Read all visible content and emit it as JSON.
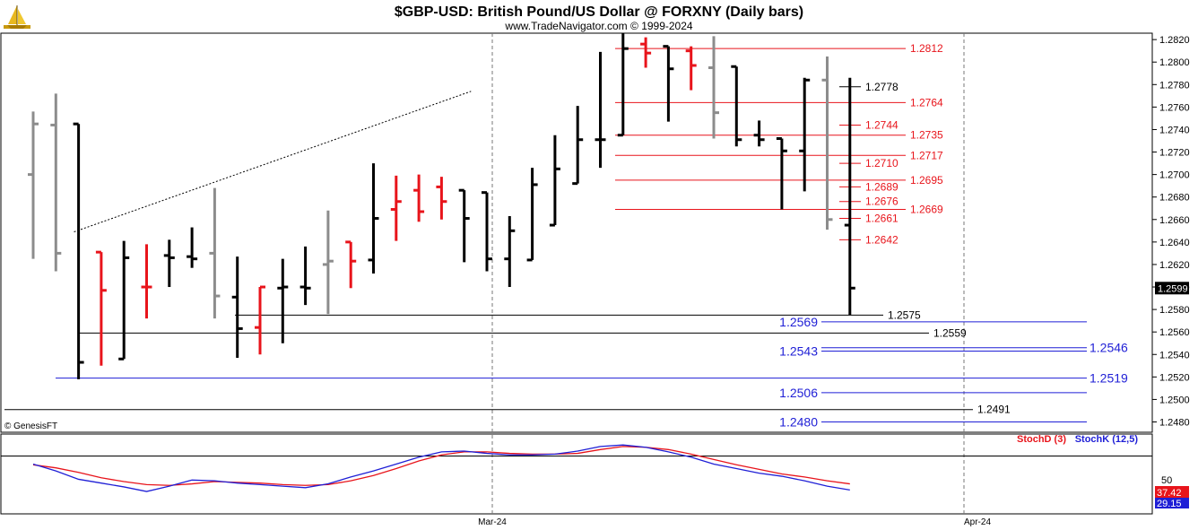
{
  "header": {
    "title": "$GBP-USD:  British Pound/US Dollar @ FORXNY  (Daily bars)",
    "subtitle": "www.TradeNavigator.com © 1999-2024",
    "watermark": "© GenesisFT",
    "logo_icon": "sailing-ship-icon"
  },
  "colors": {
    "up_bar": "#000000",
    "down_bar": "#e8141b",
    "neutral_bar": "#8c8c8c",
    "red_level": "#e8141b",
    "black_level": "#000000",
    "blue_level": "#1f1fd6",
    "stoch_d": "#e8141b",
    "stoch_k": "#1f1fd6"
  },
  "chart_data": [
    {
      "type": "ohlc",
      "name": "price",
      "ylim": [
        1.2465,
        1.2835
      ],
      "yticks": [
        "1.2480",
        "1.2500",
        "1.2520",
        "1.2540",
        "1.2560",
        "1.2580",
        "1.2600",
        "1.2620",
        "1.2640",
        "1.2660",
        "1.2680",
        "1.2700",
        "1.2720",
        "1.2740",
        "1.2760",
        "1.2780",
        "1.2800",
        "1.2820"
      ],
      "last_price": "1.2599",
      "x_labels": [
        "Mar-24",
        "Apr-24"
      ],
      "bars": [
        {
          "i": 0,
          "o": 1.27,
          "h": 1.2756,
          "l": 1.2625,
          "c": 1.2745,
          "color": "neutral"
        },
        {
          "i": 1,
          "o": 1.2744,
          "h": 1.2772,
          "l": 1.2614,
          "c": 1.263,
          "color": "neutral"
        },
        {
          "i": 2,
          "o": 1.2745,
          "h": 1.2745,
          "l": 1.2518,
          "c": 1.2533,
          "color": "up"
        },
        {
          "i": 3,
          "o": 1.2631,
          "h": 1.2631,
          "l": 1.253,
          "c": 1.2597,
          "color": "down"
        },
        {
          "i": 4,
          "o": 1.2536,
          "h": 1.2641,
          "l": 1.2536,
          "c": 1.2626,
          "color": "up"
        },
        {
          "i": 5,
          "o": 1.26,
          "h": 1.2638,
          "l": 1.2572,
          "c": 1.26,
          "color": "down"
        },
        {
          "i": 6,
          "o": 1.2628,
          "h": 1.2642,
          "l": 1.26,
          "c": 1.2626,
          "color": "up"
        },
        {
          "i": 7,
          "o": 1.2627,
          "h": 1.2653,
          "l": 1.2617,
          "c": 1.2625,
          "color": "up"
        },
        {
          "i": 8,
          "o": 1.263,
          "h": 1.2688,
          "l": 1.2572,
          "c": 1.2592,
          "color": "neutral"
        },
        {
          "i": 9,
          "o": 1.2591,
          "h": 1.2627,
          "l": 1.2537,
          "c": 1.2563,
          "color": "up"
        },
        {
          "i": 10,
          "o": 1.2564,
          "h": 1.26,
          "l": 1.254,
          "c": 1.26,
          "color": "down"
        },
        {
          "i": 11,
          "o": 1.2599,
          "h": 1.2625,
          "l": 1.255,
          "c": 1.26,
          "color": "up"
        },
        {
          "i": 12,
          "o": 1.26,
          "h": 1.2636,
          "l": 1.2584,
          "c": 1.2599,
          "color": "up"
        },
        {
          "i": 13,
          "o": 1.262,
          "h": 1.2668,
          "l": 1.2576,
          "c": 1.2623,
          "color": "neutral"
        },
        {
          "i": 14,
          "o": 1.264,
          "h": 1.264,
          "l": 1.2599,
          "c": 1.2623,
          "color": "down"
        },
        {
          "i": 15,
          "o": 1.2624,
          "h": 1.271,
          "l": 1.2612,
          "c": 1.2661,
          "color": "up"
        },
        {
          "i": 16,
          "o": 1.2669,
          "h": 1.2699,
          "l": 1.2641,
          "c": 1.2676,
          "color": "down"
        },
        {
          "i": 17,
          "o": 1.2686,
          "h": 1.27,
          "l": 1.2658,
          "c": 1.2667,
          "color": "down"
        },
        {
          "i": 18,
          "o": 1.2689,
          "h": 1.2698,
          "l": 1.266,
          "c": 1.2676,
          "color": "down"
        },
        {
          "i": 19,
          "o": 1.2686,
          "h": 1.2686,
          "l": 1.2622,
          "c": 1.2661,
          "color": "up"
        },
        {
          "i": 20,
          "o": 1.2684,
          "h": 1.2684,
          "l": 1.2614,
          "c": 1.2625,
          "color": "up"
        },
        {
          "i": 21,
          "o": 1.2625,
          "h": 1.2663,
          "l": 1.26,
          "c": 1.265,
          "color": "up"
        },
        {
          "i": 22,
          "o": 1.2624,
          "h": 1.2706,
          "l": 1.2624,
          "c": 1.2691,
          "color": "up"
        },
        {
          "i": 23,
          "o": 1.2655,
          "h": 1.2735,
          "l": 1.2655,
          "c": 1.2705,
          "color": "up"
        },
        {
          "i": 24,
          "o": 1.2692,
          "h": 1.2761,
          "l": 1.2692,
          "c": 1.2731,
          "color": "up"
        },
        {
          "i": 25,
          "o": 1.2731,
          "h": 1.2809,
          "l": 1.2706,
          "c": 1.2731,
          "color": "up"
        },
        {
          "i": 26,
          "o": 1.2735,
          "h": 1.2826,
          "l": 1.2735,
          "c": 1.2812,
          "color": "up"
        },
        {
          "i": 27,
          "o": 1.2816,
          "h": 1.2822,
          "l": 1.2795,
          "c": 1.2808,
          "color": "down"
        },
        {
          "i": 28,
          "o": 1.2814,
          "h": 1.2814,
          "l": 1.2747,
          "c": 1.2794,
          "color": "up"
        },
        {
          "i": 29,
          "o": 1.281,
          "h": 1.2814,
          "l": 1.2775,
          "c": 1.2797,
          "color": "down"
        },
        {
          "i": 30,
          "o": 1.2795,
          "h": 1.2823,
          "l": 1.2732,
          "c": 1.2755,
          "color": "neutral"
        },
        {
          "i": 31,
          "o": 1.2796,
          "h": 1.2796,
          "l": 1.2725,
          "c": 1.2731,
          "color": "up"
        },
        {
          "i": 32,
          "o": 1.2735,
          "h": 1.2748,
          "l": 1.2725,
          "c": 1.2731,
          "color": "up"
        },
        {
          "i": 33,
          "o": 1.2732,
          "h": 1.2732,
          "l": 1.2669,
          "c": 1.2721,
          "color": "up"
        },
        {
          "i": 34,
          "o": 1.2721,
          "h": 1.2786,
          "l": 1.2685,
          "c": 1.2784,
          "color": "up"
        },
        {
          "i": 35,
          "o": 1.2784,
          "h": 1.2805,
          "l": 1.2651,
          "c": 1.266,
          "color": "neutral"
        },
        {
          "i": 36,
          "o": 1.2655,
          "h": 1.2786,
          "l": 1.2575,
          "c": 1.2599,
          "color": "up"
        }
      ],
      "trendline": {
        "from": {
          "i": 1.8,
          "y": 1.2649
        },
        "to": {
          "i": 19.3,
          "y": 1.2774
        }
      },
      "levels_red": [
        "1.2812",
        "1.2764",
        "1.2744",
        "1.2735",
        "1.2717",
        "1.2710",
        "1.2695",
        "1.2689",
        "1.2676",
        "1.2669",
        "1.2661",
        "1.2642"
      ],
      "levels_black": [
        "1.2778",
        "1.2575",
        "1.2559",
        "1.2491"
      ],
      "levels_blue": [
        "1.2569",
        "1.2546",
        "1.2543",
        "1.2519",
        "1.2506",
        "1.2480"
      ]
    },
    {
      "type": "line",
      "name": "stochastic",
      "ylim": [
        0,
        100
      ],
      "reference_level": "50",
      "legend": [
        {
          "label": "StochD (3)",
          "color": "#e8141b"
        },
        {
          "label": "StochK (12,5)",
          "color": "#1f1fd6"
        }
      ],
      "last_values": {
        "stoch_d": "37.42",
        "stoch_k": "29.15"
      },
      "series": [
        {
          "name": "StochD (3)",
          "color": "#e8141b",
          "values": [
            62,
            58,
            52,
            45,
            40,
            36,
            35,
            37,
            40,
            39,
            38,
            36,
            35,
            36,
            41,
            48,
            57,
            67,
            75,
            79,
            79,
            77,
            76,
            76,
            77,
            82,
            86,
            85,
            82,
            76,
            69,
            62,
            56,
            50,
            46,
            41,
            37
          ]
        },
        {
          "name": "StochK (12,5)",
          "color": "#1f1fd6",
          "values": [
            63,
            54,
            43,
            38,
            33,
            27,
            34,
            42,
            41,
            38,
            36,
            34,
            32,
            37,
            46,
            54,
            63,
            72,
            79,
            80,
            77,
            75,
            75,
            76,
            80,
            86,
            88,
            85,
            79,
            72,
            63,
            57,
            51,
            47,
            41,
            34,
            29
          ]
        }
      ]
    }
  ]
}
